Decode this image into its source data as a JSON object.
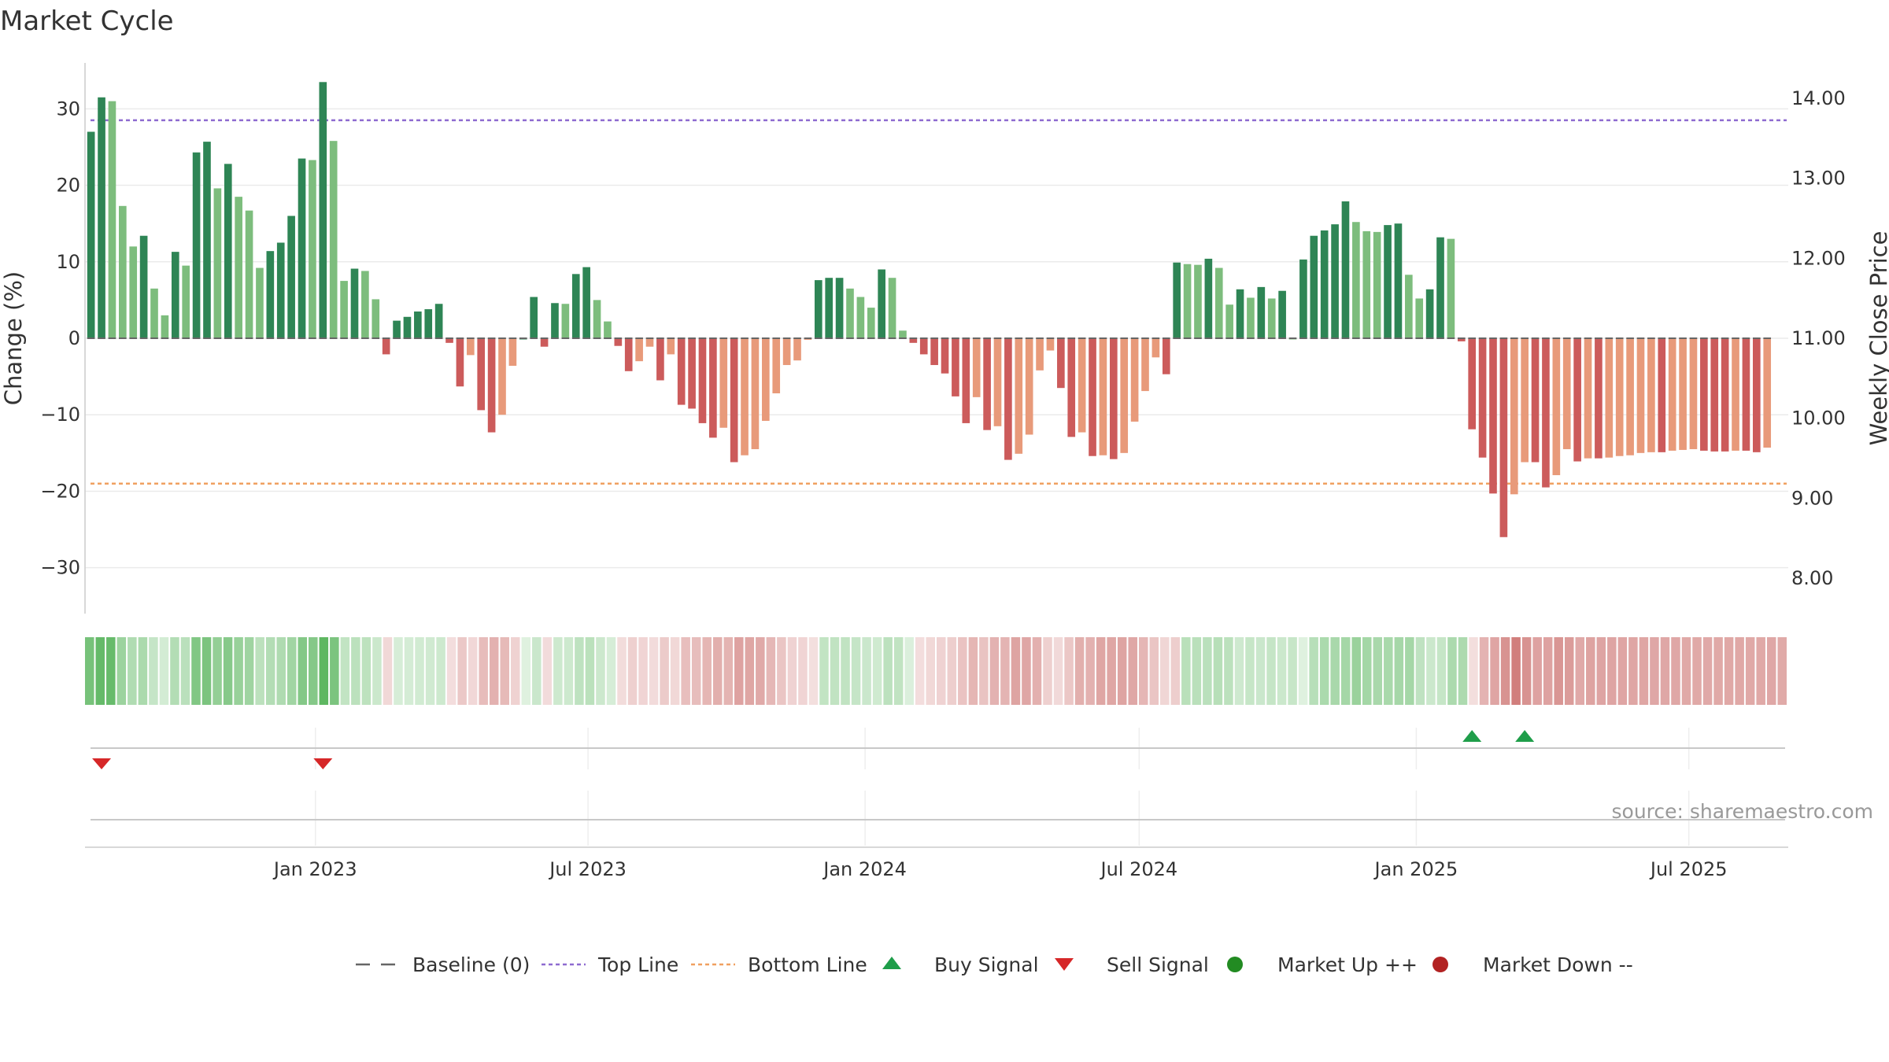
{
  "chart_data": {
    "type": "bar",
    "title": "Market Cycle",
    "ylabel": "Change (%)",
    "y2label": "Weekly Close Price",
    "ylim": [
      -36,
      36
    ],
    "y2lim": [
      7.56,
      14.44
    ],
    "yticks": [
      {
        "value": 30,
        "label": "30"
      },
      {
        "value": 20,
        "label": "20"
      },
      {
        "value": 10,
        "label": "10"
      },
      {
        "value": 0,
        "label": "0"
      },
      {
        "value": -10,
        "label": "−10"
      },
      {
        "value": -20,
        "label": "−20"
      },
      {
        "value": -30,
        "label": "−30"
      }
    ],
    "y2ticks": [
      "14.00",
      "13.00",
      "12.00",
      "11.00",
      "10.00",
      "9.00",
      "8.00"
    ],
    "x_start": "2022-08-01",
    "x_end": "2025-09-05",
    "xticks": [
      {
        "date": "2023-01-01",
        "label": "Jan 2023"
      },
      {
        "date": "2023-07-01",
        "label": "Jul 2023"
      },
      {
        "date": "2024-01-01",
        "label": "Jan 2024"
      },
      {
        "date": "2024-07-01",
        "label": "Jul 2024"
      },
      {
        "date": "2025-01-01",
        "label": "Jan 2025"
      },
      {
        "date": "2025-07-01",
        "label": "Jul 2025"
      }
    ],
    "first_week": "2022-08-05",
    "top_line": 28.5,
    "bottom_line": -19,
    "values": [
      27,
      31.5,
      31,
      17.3,
      12,
      13.4,
      6.5,
      3,
      11.3,
      9.5,
      24.3,
      25.7,
      19.6,
      22.8,
      18.5,
      16.7,
      9.2,
      11.4,
      12.5,
      16,
      23.5,
      23.3,
      33.5,
      25.8,
      7.5,
      9.1,
      8.8,
      5.1,
      -2.1,
      2.3,
      2.8,
      3.5,
      3.8,
      4.5,
      -0.6,
      -6.3,
      -2.2,
      -9.4,
      -12.3,
      -10,
      -3.6,
      0,
      5.4,
      -1.1,
      4.6,
      4.5,
      8.4,
      9.3,
      5,
      2.2,
      -1,
      -4.3,
      -3,
      -1.1,
      -5.5,
      -2.1,
      -8.7,
      -9.2,
      -11.1,
      -13,
      -11.7,
      -16.2,
      -15.3,
      -14.5,
      -10.8,
      -7.2,
      -3.5,
      -2.9,
      -0.2,
      7.6,
      7.9,
      7.9,
      6.5,
      5.4,
      4,
      9,
      7.9,
      1,
      -0.6,
      -2.1,
      -3.5,
      -4.6,
      -7.6,
      -11.1,
      -7.7,
      -12,
      -11.5,
      -15.9,
      -15.1,
      -12.6,
      -4.2,
      -1.6,
      -6.5,
      -12.9,
      -12.3,
      -15.4,
      -15.3,
      -15.8,
      -15,
      -10.9,
      -6.9,
      -2.5,
      -4.7,
      9.9,
      9.7,
      9.6,
      10.4,
      9.2,
      4.4,
      6.4,
      5.3,
      6.7,
      5.2,
      6.2,
      0,
      10.3,
      13.4,
      14.1,
      14.9,
      17.9,
      15.2,
      14,
      13.9,
      14.8,
      15,
      8.3,
      5.2,
      6.4,
      13.2,
      13,
      -0.4,
      -11.9,
      -15.6,
      -20.3,
      -26,
      -20.4,
      -16.2,
      -16.2,
      -19.5,
      -17.9,
      -14.5,
      -16.1,
      -15.7,
      -15.7,
      -15.6,
      -15.4,
      -15.3,
      -15,
      -14.9,
      -14.9,
      -14.7,
      -14.6,
      -14.5,
      -14.7,
      -14.8,
      -14.8,
      -14.7,
      -14.7,
      -14.9,
      -14.3
    ],
    "signals": [
      {
        "type": "sell",
        "week": 1
      },
      {
        "type": "sell",
        "week": 22
      },
      {
        "type": "buy",
        "week": 131
      },
      {
        "type": "buy",
        "week": 136
      }
    ],
    "legend": [
      {
        "key": "baseline",
        "label": "Baseline (0)"
      },
      {
        "key": "top",
        "label": "Top Line"
      },
      {
        "key": "bottom",
        "label": "Bottom Line"
      },
      {
        "key": "buy",
        "label": "Buy Signal"
      },
      {
        "key": "sell",
        "label": "Sell Signal"
      },
      {
        "key": "up",
        "label": "Market Up ++"
      },
      {
        "key": "down",
        "label": "Market Down --"
      }
    ],
    "source": "source: sharemaestro.com",
    "colors": {
      "pos_dark": "#2e8555",
      "pos_light": "#7dbd7d",
      "neg_dark": "#cc5b5b",
      "neg_light": "#e89a7a",
      "top_line": "#8e6bd0",
      "bottom_line": "#f0a060",
      "buy": "#1f9e4a",
      "sell": "#d62728",
      "up": "#228b22",
      "down": "#b22222",
      "baseline": "#666666",
      "heat_pos": "#4caf50",
      "heat_neg": "#c0504d"
    }
  }
}
